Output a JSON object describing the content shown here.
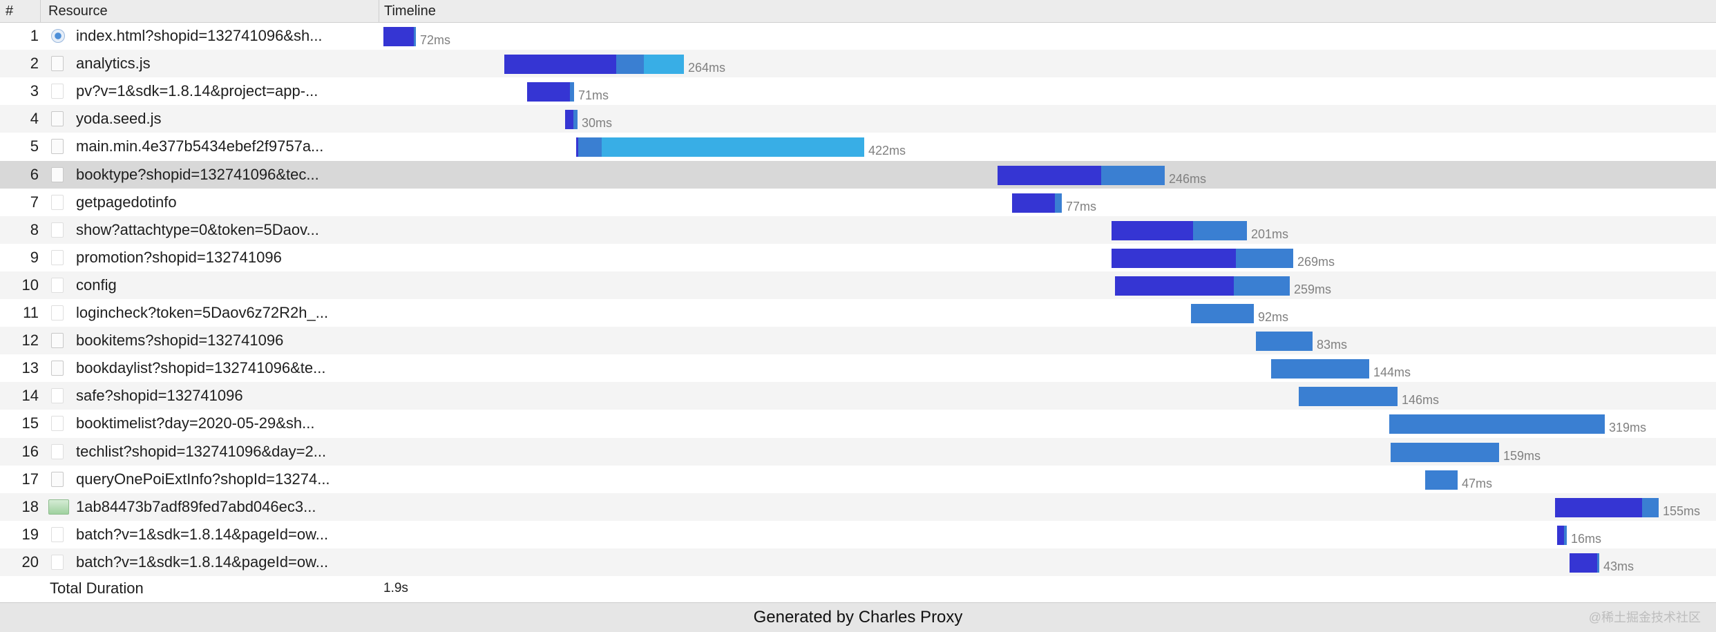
{
  "header": {
    "num_label": "#",
    "resource_label": "Resource",
    "timeline_label": "Timeline"
  },
  "rows": [
    {
      "n": "1",
      "name": "index.html?shopid=132741096&sh...",
      "icon": "html-page-icon",
      "wait": 44,
      "recv": 3,
      "light": 0,
      "dur": "72ms"
    },
    {
      "n": "2",
      "name": "analytics.js",
      "icon": "script-file-icon",
      "wait": 162,
      "recv": 40,
      "light": 58,
      "dur": "264ms"
    },
    {
      "n": "3",
      "name": "pv?v=1&sdk=1.8.14&project=app-...",
      "icon": "blank-file-icon",
      "wait": 62,
      "recv": 6,
      "light": 0,
      "dur": "71ms"
    },
    {
      "n": "4",
      "name": "yoda.seed.js",
      "icon": "text-file-icon",
      "wait": 12,
      "recv": 6,
      "light": 0,
      "dur": "30ms"
    },
    {
      "n": "5",
      "name": "main.min.4e377b5434ebef2f9757a...",
      "icon": "script-file-icon",
      "wait": 3,
      "recv": 34,
      "light": 380,
      "dur": "422ms"
    },
    {
      "n": "6",
      "name": "booktype?shopid=132741096&tec...",
      "icon": "document-file-icon",
      "wait": 150,
      "recv": 92,
      "light": 0,
      "dur": "246ms"
    },
    {
      "n": "7",
      "name": "getpagedotinfo",
      "icon": "blank-file-icon",
      "wait": 62,
      "recv": 10,
      "light": 0,
      "dur": "77ms"
    },
    {
      "n": "8",
      "name": "show?attachtype=0&token=5Daov...",
      "icon": "blank-file-icon",
      "wait": 118,
      "recv": 78,
      "light": 0,
      "dur": "201ms"
    },
    {
      "n": "9",
      "name": "promotion?shopid=132741096",
      "icon": "blank-file-icon",
      "wait": 180,
      "recv": 83,
      "light": 0,
      "dur": "269ms"
    },
    {
      "n": "10",
      "name": "config",
      "icon": "blank-file-icon",
      "wait": 172,
      "recv": 81,
      "light": 0,
      "dur": "259ms"
    },
    {
      "n": "11",
      "name": "logincheck?token=5Daov6z72R2h_...",
      "icon": "blank-file-icon",
      "wait": 0,
      "recv": 91,
      "light": 0,
      "dur": "92ms"
    },
    {
      "n": "12",
      "name": "bookitems?shopid=132741096",
      "icon": "json-file-icon",
      "wait": 0,
      "recv": 82,
      "light": 0,
      "dur": "83ms"
    },
    {
      "n": "13",
      "name": "bookdaylist?shopid=132741096&te...",
      "icon": "json-file-icon",
      "wait": 0,
      "recv": 142,
      "light": 0,
      "dur": "144ms"
    },
    {
      "n": "14",
      "name": "safe?shopid=132741096",
      "icon": "blank-file-icon",
      "wait": 0,
      "recv": 143,
      "light": 0,
      "dur": "146ms"
    },
    {
      "n": "15",
      "name": "booktimelist?day=2020-05-29&sh...",
      "icon": "blank-file-icon",
      "wait": 0,
      "recv": 312,
      "light": 0,
      "dur": "319ms"
    },
    {
      "n": "16",
      "name": "techlist?shopid=132741096&day=2...",
      "icon": "blank-file-icon",
      "wait": 0,
      "recv": 157,
      "light": 0,
      "dur": "159ms"
    },
    {
      "n": "17",
      "name": "queryOnePoiExtInfo?shopId=13274...",
      "icon": "json-file-icon",
      "wait": 0,
      "recv": 47,
      "light": 0,
      "dur": "47ms"
    },
    {
      "n": "18",
      "name": "1ab84473b7adf89fed7abd046ec3...",
      "icon": "image-file-icon",
      "wait": 126,
      "recv": 24,
      "light": 0,
      "dur": "155ms"
    },
    {
      "n": "19",
      "name": "batch?v=1&sdk=1.8.14&pageId=ow...",
      "icon": "blank-file-icon",
      "wait": 10,
      "recv": 4,
      "light": 0,
      "dur": "16ms"
    },
    {
      "n": "20",
      "name": "batch?v=1&sdk=1.8.14&pageId=ow...",
      "icon": "blank-file-icon",
      "wait": 40,
      "recv": 3,
      "light": 0,
      "dur": "43ms"
    }
  ],
  "total": {
    "label": "Total Duration",
    "value": "1.9s"
  },
  "footer": {
    "text": "Generated by Charles Proxy"
  },
  "watermark": "@稀土掘金技术社区",
  "colors": {
    "wait": "#3535d3",
    "receive": "#3a7fd2",
    "light": "#38aee6",
    "selected_row": "#d8d8d8"
  }
}
